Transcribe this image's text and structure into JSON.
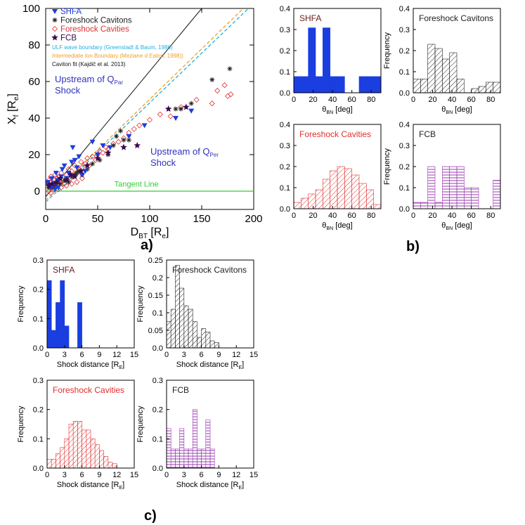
{
  "panel_labels": [
    "a)",
    "b)",
    "c)"
  ],
  "colors": {
    "shfa": "#1a3ee0",
    "cavitons": "#222222",
    "cavities": "#e03030",
    "fcb": "#9a3ab0",
    "fcb_marker": "#3a0a50",
    "ulf": "#20b0e0",
    "intermediate": "#f0a020",
    "tangent": "#33cc33",
    "caviton_fit": "#111111",
    "region_text": "#3030c0",
    "shfa_title": "#6a1a1a"
  },
  "chart_data": [
    {
      "id": "a",
      "type": "scatter",
      "xlabel": "D",
      "xlabel_sub": "BT",
      "xlabel_unit": "[R",
      "xlabel_unit_sub": "e",
      "xlabel_unit_end": "]",
      "ylabel": "X",
      "ylabel_sub": "f",
      "ylabel_unit": "[R",
      "ylabel_unit_sub": "e",
      "ylabel_unit_end": "]",
      "xlim": [
        0,
        200
      ],
      "ylim": [
        -10,
        100
      ],
      "xticks": [
        0,
        50,
        100,
        150,
        200
      ],
      "yticks": [
        0,
        20,
        40,
        60,
        80,
        100
      ],
      "legend": [
        "SHFA",
        "Foreshock Cavitons",
        "Foreshock Cavities",
        "FCB"
      ],
      "line_legend": [
        "ULF wave boundary (Greenstadt & Baum, 1986)",
        "Intermediate Ion Boundary (Meziane  d Eaton, 1998))",
        "Caviton fit (Kajdič et al. 2013)"
      ],
      "annotations": {
        "tangent": "Tangent Line",
        "qpar_line1": "Upstream of Q",
        "qpar_sub": "Par",
        "qpar_line2": "Shock",
        "qper_line1": "Upstream of Q",
        "qper_sub": "Per",
        "qper_line2": "Shock"
      },
      "lines": [
        {
          "name": "Caviton fit",
          "x": [
            0,
            150
          ],
          "y": [
            -3,
            100
          ]
        },
        {
          "name": "ULF wave boundary",
          "x": [
            0,
            195
          ],
          "y": [
            -6,
            100
          ]
        },
        {
          "name": "Intermediate Ion Boundary",
          "x": [
            0,
            190
          ],
          "y": [
            -5,
            100
          ]
        },
        {
          "name": "Tangent Line",
          "x": [
            0,
            200
          ],
          "y": [
            0,
            0
          ]
        }
      ],
      "series": [
        {
          "name": "SHFA",
          "points": [
            [
              2,
              5
            ],
            [
              4,
              3
            ],
            [
              6,
              7
            ],
            [
              8,
              4
            ],
            [
              10,
              10
            ],
            [
              12,
              6
            ],
            [
              15,
              8
            ],
            [
              16,
              12
            ],
            [
              18,
              14
            ],
            [
              20,
              7
            ],
            [
              22,
              10
            ],
            [
              25,
              16
            ],
            [
              26,
              24
            ],
            [
              28,
              17
            ],
            [
              30,
              13
            ],
            [
              32,
              19
            ],
            [
              35,
              9
            ],
            [
              38,
              11
            ],
            [
              45,
              27
            ],
            [
              50,
              20
            ],
            [
              55,
              25
            ],
            [
              62,
              24
            ],
            [
              80,
              30
            ],
            [
              95,
              36
            ],
            [
              125,
              40
            ],
            [
              140,
              44
            ],
            [
              5,
              2
            ],
            [
              9,
              1
            ],
            [
              12,
              2
            ]
          ]
        },
        {
          "name": "Foreshock Cavitons",
          "points": [
            [
              3,
              2
            ],
            [
              5,
              3
            ],
            [
              7,
              2
            ],
            [
              10,
              3
            ],
            [
              12,
              5
            ],
            [
              14,
              4
            ],
            [
              18,
              6
            ],
            [
              20,
              7
            ],
            [
              22,
              5
            ],
            [
              25,
              8
            ],
            [
              28,
              9
            ],
            [
              30,
              10
            ],
            [
              32,
              11
            ],
            [
              35,
              9
            ],
            [
              40,
              12
            ],
            [
              45,
              15
            ],
            [
              52,
              17
            ],
            [
              60,
              20
            ],
            [
              65,
              25
            ],
            [
              68,
              30
            ],
            [
              72,
              33
            ],
            [
              75,
              28
            ],
            [
              80,
              28
            ],
            [
              125,
              45
            ],
            [
              130,
              45
            ],
            [
              140,
              48
            ],
            [
              160,
              61
            ],
            [
              177,
              67
            ],
            [
              2,
              4
            ]
          ]
        },
        {
          "name": "Foreshock Cavities",
          "points": [
            [
              2,
              4
            ],
            [
              3,
              6
            ],
            [
              4,
              2
            ],
            [
              5,
              8
            ],
            [
              6,
              5
            ],
            [
              7,
              3
            ],
            [
              8,
              6
            ],
            [
              9,
              9
            ],
            [
              10,
              4
            ],
            [
              11,
              7
            ],
            [
              12,
              3
            ],
            [
              13,
              8
            ],
            [
              14,
              5
            ],
            [
              15,
              10
            ],
            [
              16,
              6
            ],
            [
              18,
              4
            ],
            [
              20,
              9
            ],
            [
              22,
              12
            ],
            [
              24,
              7
            ],
            [
              25,
              11
            ],
            [
              27,
              8
            ],
            [
              28,
              14
            ],
            [
              30,
              10
            ],
            [
              32,
              12
            ],
            [
              34,
              16
            ],
            [
              35,
              13
            ],
            [
              38,
              15
            ],
            [
              40,
              18
            ],
            [
              42,
              14
            ],
            [
              45,
              19
            ],
            [
              48,
              17
            ],
            [
              50,
              20
            ],
            [
              52,
              22
            ],
            [
              55,
              21
            ],
            [
              58,
              24
            ],
            [
              60,
              23
            ],
            [
              65,
              26
            ],
            [
              70,
              27
            ],
            [
              75,
              29
            ],
            [
              80,
              32
            ],
            [
              85,
              34
            ],
            [
              90,
              36
            ],
            [
              100,
              39
            ],
            [
              110,
              42
            ],
            [
              120,
              41
            ],
            [
              130,
              46
            ],
            [
              145,
              50
            ],
            [
              160,
              48
            ],
            [
              165,
              55
            ],
            [
              172,
              58
            ],
            [
              175,
              52
            ],
            [
              178,
              53
            ],
            [
              5,
              -1
            ],
            [
              8,
              1
            ],
            [
              12,
              1
            ],
            [
              3,
              0
            ],
            [
              15,
              2
            ],
            [
              20,
              3
            ],
            [
              25,
              4
            ],
            [
              30,
              5
            ],
            [
              35,
              7
            ]
          ]
        },
        {
          "name": "FCB",
          "points": [
            [
              3,
              3
            ],
            [
              6,
              4
            ],
            [
              10,
              5
            ],
            [
              14,
              7
            ],
            [
              20,
              6
            ],
            [
              24,
              9
            ],
            [
              28,
              8
            ],
            [
              34,
              11
            ],
            [
              40,
              14
            ],
            [
              50,
              18
            ],
            [
              60,
              21
            ],
            [
              75,
              24
            ],
            [
              88,
              25
            ],
            [
              118,
              45
            ],
            [
              135,
              46
            ]
          ]
        }
      ]
    },
    {
      "id": "b",
      "type": "bar",
      "xlabel": "θ",
      "xlabel_sub": "BN",
      "xlabel_unit": "[deg]",
      "ylabel": "Frequency",
      "xlim": [
        0,
        90
      ],
      "ylim": [
        0,
        0.4
      ],
      "xticks": [
        0,
        20,
        40,
        60,
        80
      ],
      "yticks": [
        0.0,
        0.1,
        0.2,
        0.3,
        0.4
      ],
      "bin_width": 7.5,
      "panels": [
        {
          "title": "SHFA",
          "style": "solid",
          "values": [
            0.077,
            0.077,
            0.308,
            0.077,
            0.308,
            0.077,
            0.077,
            0,
            0,
            0.077,
            0.077,
            0.077
          ]
        },
        {
          "title": "Foreshock Cavitons",
          "style": "diag",
          "values": [
            0.065,
            0.065,
            0.23,
            0.21,
            0.16,
            0.19,
            0.065,
            0,
            0.02,
            0.03,
            0.05,
            0.05
          ]
        },
        {
          "title": "Foreshock Cavities",
          "style": "diag-red",
          "values": [
            0.03,
            0.05,
            0.07,
            0.09,
            0.14,
            0.18,
            0.2,
            0.19,
            0.16,
            0.12,
            0.09,
            0.02
          ]
        },
        {
          "title": "FCB",
          "style": "horiz",
          "values": [
            0.03,
            0.03,
            0.2,
            0.03,
            0.2,
            0.2,
            0.2,
            0.1,
            0.1,
            0,
            0,
            0.135
          ]
        }
      ]
    },
    {
      "id": "c",
      "type": "bar",
      "xlabel": "Shock distance",
      "xlabel_unit": "[R",
      "xlabel_unit_sub": "E",
      "xlabel_unit_end": "]",
      "ylabel": "Frequency",
      "xlim": [
        0,
        15
      ],
      "xticks": [
        0,
        3,
        6,
        9,
        12,
        15
      ],
      "bin_width": 0.75,
      "panels": [
        {
          "title": "SHFA",
          "style": "solid",
          "ylim": [
            0,
            0.3
          ],
          "yticks": [
            0.0,
            0.1,
            0.2,
            0.3
          ],
          "values": [
            0.23,
            0.06,
            0.155,
            0.23,
            0.075,
            0,
            0,
            0.155
          ]
        },
        {
          "title": "Foreshock Cavitons",
          "style": "diag",
          "ylim": [
            0,
            0.25
          ],
          "yticks": [
            0.0,
            0.05,
            0.1,
            0.15,
            0.2,
            0.25
          ],
          "values": [
            0.075,
            0.11,
            0.235,
            0.17,
            0.12,
            0.11,
            0.075,
            0.03,
            0.055,
            0.045,
            0.02,
            0.015,
            0,
            0,
            0,
            0,
            0,
            0,
            0,
            0
          ]
        },
        {
          "title": "Foreshock Cavities",
          "style": "diag-red",
          "ylim": [
            0,
            0.3
          ],
          "yticks": [
            0.0,
            0.1,
            0.2,
            0.3
          ],
          "values": [
            0.03,
            0.03,
            0.05,
            0.07,
            0.1,
            0.15,
            0.16,
            0.16,
            0.13,
            0.13,
            0.1,
            0.08,
            0.06,
            0.04,
            0.02,
            0.015,
            0,
            0
          ]
        },
        {
          "title": "FCB",
          "style": "horiz",
          "ylim": [
            0,
            0.3
          ],
          "yticks": [
            0.0,
            0.1,
            0.2,
            0.3
          ],
          "values": [
            0.135,
            0.065,
            0.065,
            0.135,
            0.065,
            0.065,
            0.2,
            0.065,
            0.065,
            0.165,
            0.065,
            0,
            0,
            0,
            0,
            0,
            0,
            0,
            0,
            0
          ]
        }
      ]
    }
  ]
}
